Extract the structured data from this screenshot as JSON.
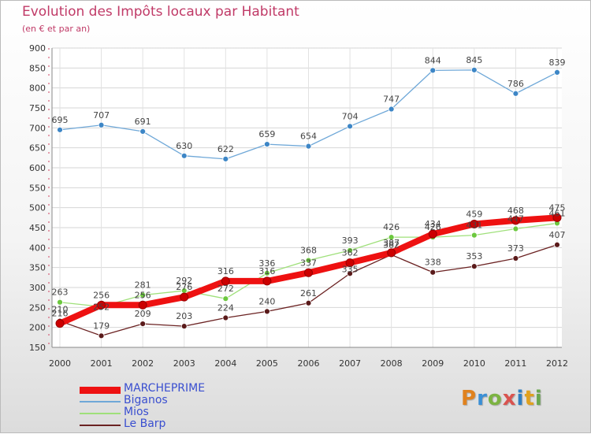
{
  "header": {
    "title": "Evolution des Impôts locaux par Habitant",
    "subtitle": "(en € et par an)"
  },
  "logo": {
    "letters": [
      "P",
      "r",
      "o",
      "x",
      "i",
      "t",
      "i"
    ],
    "colors": [
      "#e0821e",
      "#3a8fd6",
      "#7cb342",
      "#d9534f",
      "#2f7fc1",
      "#e0a11e",
      "#6aa84f"
    ]
  },
  "chart_data": {
    "type": "line",
    "title": "Evolution des Impôts locaux par Habitant",
    "subtitle": "(en € et par an)",
    "xlabel": "",
    "ylabel": "",
    "x": [
      "2000",
      "2001",
      "2002",
      "2003",
      "2004",
      "2005",
      "2006",
      "2007",
      "2008",
      "2009",
      "2010",
      "2011",
      "2012"
    ],
    "ylim": [
      150,
      900
    ],
    "yticks": [
      150,
      200,
      250,
      300,
      350,
      400,
      450,
      500,
      550,
      600,
      650,
      700,
      750,
      800,
      850,
      900
    ],
    "grid": true,
    "legend_position": "bottom-left",
    "series": [
      {
        "name": "MARCHEPRIME",
        "values": [
          210,
          256,
          256,
          276,
          316,
          316,
          337,
          362,
          387,
          434,
          459,
          468,
          475
        ],
        "labels": [
          "210",
          "256",
          "256",
          "276",
          "316",
          "316",
          "337",
          "362",
          "387",
          "434",
          "459",
          "468",
          "475"
        ],
        "color": "#ee1111",
        "line_width": 8,
        "marker_radius": 5
      },
      {
        "name": "Biganos",
        "values": [
          695,
          707,
          691,
          630,
          622,
          659,
          654,
          704,
          747,
          844,
          845,
          786,
          839
        ],
        "labels": [
          "695",
          "707",
          "691",
          "630",
          "622",
          "659",
          "654",
          "704",
          "747",
          "844",
          "845",
          "786",
          "839"
        ],
        "color": "#6fa8d8",
        "marker": "#3d86c6",
        "line_width": 1.3,
        "marker_radius": 3.5
      },
      {
        "name": "Mios",
        "values": [
          263,
          252,
          281,
          292,
          272,
          336,
          368,
          393,
          426,
          426,
          431,
          447,
          461
        ],
        "labels": [
          "263",
          "252",
          "281",
          "292",
          "272",
          "336",
          "368",
          "393",
          "426",
          "426",
          "431",
          "447",
          "461"
        ],
        "color": "#9fe07a",
        "marker": "#6cc83e",
        "line_width": 1.3,
        "marker_radius": 3.5
      },
      {
        "name": "Le Barp",
        "values": [
          216,
          179,
          209,
          203,
          224,
          240,
          261,
          335,
          382,
          338,
          353,
          373,
          407
        ],
        "labels": [
          "216",
          "179",
          "209",
          "203",
          "224",
          "240",
          "261",
          "335",
          "382",
          "338",
          "353",
          "373",
          "407"
        ],
        "color": "#6b2222",
        "marker": "#5a1a1a",
        "line_width": 1.3,
        "marker_radius": 3.5
      }
    ]
  }
}
